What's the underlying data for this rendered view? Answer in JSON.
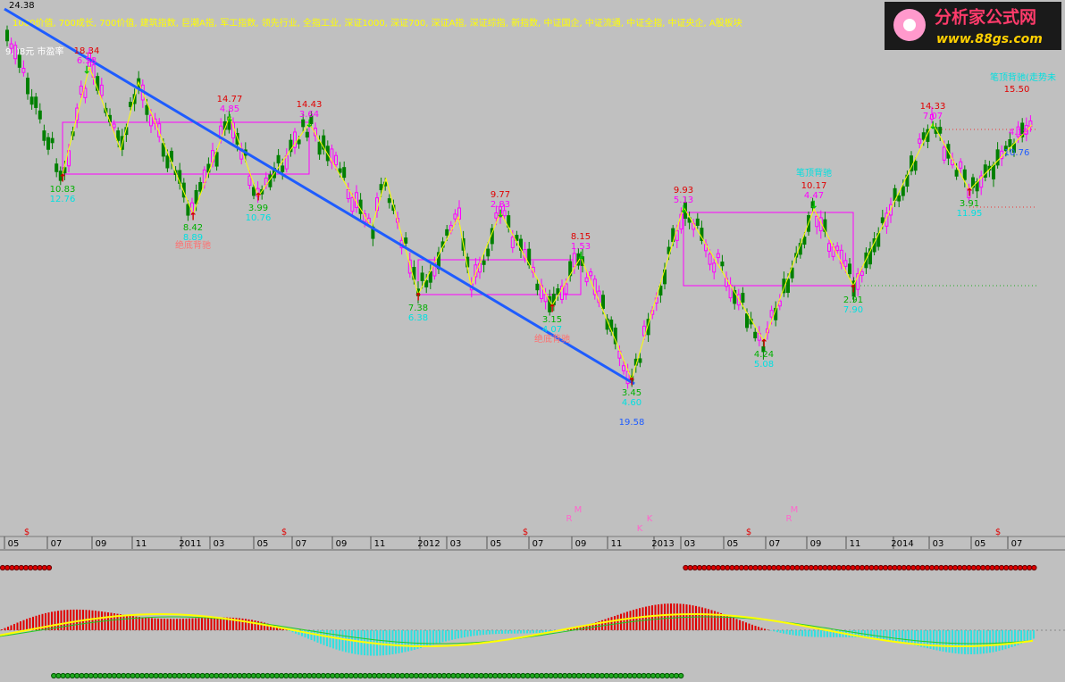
{
  "top_price": "24.38",
  "header": {
    "index_list": "1000价值, 700成长, 700价值, 建筑指数, 巨潮A指, 军工指数, 领先行业, 全指工业, 深证1000, 深证700, 深证A指, 深证综指, 新指数, 中证国企, 中证流通, 中证全指, 中证央企, A股板块",
    "quote": "9.08元 市盈率"
  },
  "logo": {
    "name": "分析家公式网",
    "url": "www.88gs.com"
  },
  "annotations": [
    {
      "lines": [
        "18.34",
        "6.58"
      ]
    },
    {
      "lines": [
        "10.83",
        "12.76"
      ]
    },
    {
      "lines": [
        "14.77",
        "4.85"
      ]
    },
    {
      "lines": [
        "8.42",
        "8.89"
      ]
    },
    {
      "lines": [
        "3.99",
        "10.76"
      ]
    },
    {
      "lines": [
        "14.43",
        "3.64"
      ]
    },
    {
      "lines": [
        "9.77",
        "2.83"
      ]
    },
    {
      "lines": [
        "7.38",
        "6.38"
      ]
    },
    {
      "lines": [
        "8.15",
        "1.53"
      ]
    },
    {
      "lines": [
        "3.15",
        "4.07"
      ]
    },
    {
      "lines": [
        "3.45",
        "4.60"
      ]
    },
    {
      "lines": [
        "9.93",
        "5.13"
      ]
    },
    {
      "lines": [
        "4.24",
        "5.08"
      ]
    },
    {
      "lines": [
        "10.17",
        "4.47"
      ]
    },
    {
      "lines": [
        "2.91",
        "7.90"
      ]
    },
    {
      "lines": [
        "14.33",
        "7.07"
      ]
    },
    {
      "lines": [
        "3.91",
        "11.95"
      ]
    }
  ],
  "notes": [
    "绝底背驰",
    "绝底背驰",
    "笔顶背驰",
    "笔顶背驰(走势未",
    "15.50",
    "19.58",
    "4.18",
    "10.76"
  ],
  "markers": [
    "$",
    "$",
    "$",
    "$",
    "$",
    "R",
    "M",
    "K",
    "K",
    "R",
    "M"
  ],
  "x_axis": {
    "labels": [
      "05",
      "07",
      "09",
      "11",
      "2011",
      "03",
      "05",
      "07",
      "09",
      "11",
      "2012",
      "03",
      "05",
      "07",
      "09",
      "11",
      "2013",
      "03",
      "05",
      "07",
      "09",
      "11",
      "2014",
      "03",
      "05",
      "07"
    ]
  }
}
